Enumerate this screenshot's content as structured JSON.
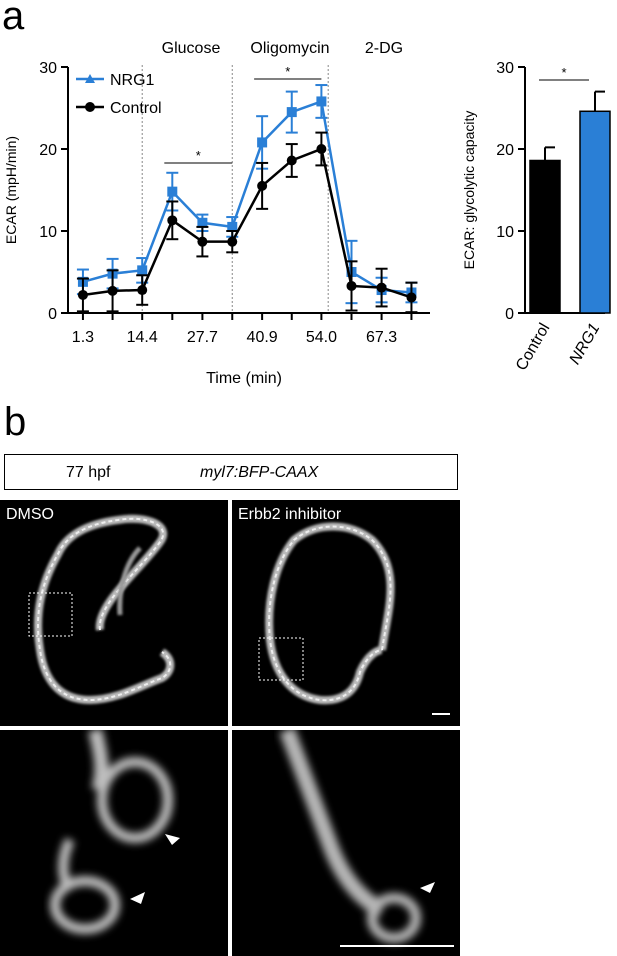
{
  "panels": {
    "a": {
      "letter": "a"
    },
    "b": {
      "letter": "b",
      "stage_label": "77 hpf",
      "construct_label": "myl7:BFP-CAAX",
      "image_labels": [
        "DMSO",
        "Erbb2 inhibitor"
      ]
    }
  },
  "chart_data": [
    {
      "type": "line",
      "xlabel": "Time (min)",
      "ylabel": "ECAR (mpH/min)",
      "ylim": [
        0,
        30
      ],
      "yticks": [
        0,
        10,
        20,
        30
      ],
      "x_tick_labels": [
        "1.3",
        "14.4",
        "27.7",
        "40.9",
        "54.0",
        "67.3"
      ],
      "x_ticks": [
        1.3,
        7.85,
        14.4,
        21.05,
        27.7,
        34.3,
        40.9,
        47.45,
        54.0,
        60.65,
        67.3,
        73.9
      ],
      "x": [
        1.3,
        7.85,
        14.4,
        21.05,
        27.7,
        34.3,
        40.9,
        47.45,
        54.0,
        60.65,
        67.3,
        73.9
      ],
      "injections": [
        {
          "label": "Glucose",
          "x": 14.4
        },
        {
          "label": "Oligomycin",
          "x": 34.3
        },
        {
          "label": "2-DG",
          "x": 55.5
        }
      ],
      "significance": [
        {
          "label": "*",
          "from": 21.05,
          "to": 34.3
        },
        {
          "label": "*",
          "from": 40.9,
          "to": 54.0
        }
      ],
      "legend": "top-left",
      "series": [
        {
          "name": "NRG1",
          "color": "#2a7fd6",
          "marker": "square",
          "values": [
            3.8,
            4.8,
            5.2,
            14.8,
            11.0,
            10.5,
            20.8,
            24.5,
            25.8,
            5.0,
            2.8,
            2.5
          ],
          "errors": [
            1.5,
            1.8,
            1.5,
            2.3,
            1.0,
            1.2,
            3.2,
            2.5,
            2.0,
            3.8,
            1.5,
            1.2
          ]
        },
        {
          "name": "Control",
          "color": "#000000",
          "marker": "circle",
          "values": [
            2.2,
            2.7,
            2.8,
            11.3,
            8.7,
            8.7,
            15.5,
            18.6,
            20.0,
            3.3,
            3.1,
            1.9
          ],
          "errors": [
            2.0,
            2.5,
            1.8,
            2.3,
            1.8,
            1.3,
            2.8,
            2.0,
            2.0,
            3.0,
            2.3,
            1.8
          ]
        }
      ]
    },
    {
      "type": "bar",
      "ylabel": "ECAR: glycolytic capacity",
      "ylim": [
        0,
        30
      ],
      "yticks": [
        0,
        10,
        20,
        30
      ],
      "categories": [
        "Control",
        "NRG1"
      ],
      "values": [
        18.6,
        24.6
      ],
      "errors": [
        1.6,
        2.4
      ],
      "colors": [
        "#000000",
        "#2a7fd6"
      ],
      "category_italic": [
        false,
        true
      ],
      "significance": [
        {
          "label": "*"
        }
      ]
    }
  ]
}
